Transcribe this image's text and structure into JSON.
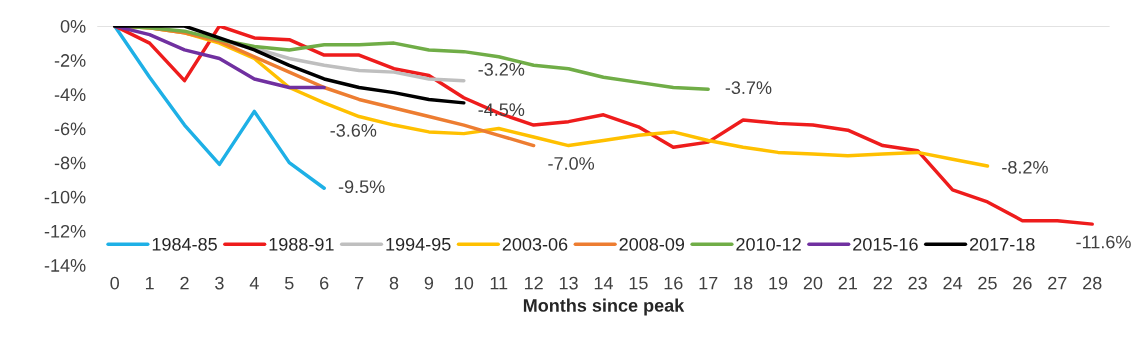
{
  "chart_data": {
    "type": "line",
    "xlabel": "Months since peak",
    "xlim": [
      -0.5,
      28.5
    ],
    "xticks": [
      0,
      1,
      2,
      3,
      4,
      5,
      6,
      7,
      8,
      9,
      10,
      11,
      12,
      13,
      14,
      15,
      16,
      17,
      18,
      19,
      20,
      21,
      22,
      23,
      24,
      25,
      26,
      27,
      28
    ],
    "ylim": [
      -14,
      0
    ],
    "yticks": [
      {
        "value": 0,
        "label": "0%"
      },
      {
        "value": -2,
        "label": "-2%"
      },
      {
        "value": -4,
        "label": "-4%"
      },
      {
        "value": -6,
        "label": "-6%"
      },
      {
        "value": -8,
        "label": "-8%"
      },
      {
        "value": -10,
        "label": "-10%"
      },
      {
        "value": -12,
        "label": "-12%"
      },
      {
        "value": -14,
        "label": "-14%"
      }
    ],
    "grid": false,
    "legend": "bottom left",
    "line_style": "solid",
    "marker": "none",
    "ref_lines": [
      {
        "axis": "y",
        "value": 0,
        "color": "#d9d9d9"
      }
    ],
    "series": [
      {
        "name": "1984-85",
        "color": "#1eb0e6",
        "x": [
          0,
          1,
          2,
          3,
          4,
          5,
          6
        ],
        "values": [
          0,
          -3.0,
          -5.8,
          -8.1,
          -5.0,
          -8.0,
          -9.5
        ]
      },
      {
        "name": "1988-91",
        "color": "#ee1c1c",
        "x": [
          0,
          1,
          2,
          3,
          4,
          5,
          6,
          7,
          8,
          9,
          10,
          11,
          12,
          13,
          14,
          15,
          16,
          17,
          18,
          19,
          20,
          21,
          22,
          23,
          24,
          25,
          26,
          27,
          28
        ],
        "values": [
          0,
          -1.0,
          -3.2,
          0,
          -0.7,
          -0.8,
          -1.7,
          -1.7,
          -2.5,
          -2.9,
          -4.2,
          -5.1,
          -5.8,
          -5.6,
          -5.2,
          -5.9,
          -7.1,
          -6.8,
          -5.5,
          -5.7,
          -5.8,
          -6.1,
          -7.0,
          -7.3,
          -9.6,
          -10.3,
          -11.4,
          -11.4,
          -11.6
        ]
      },
      {
        "name": "1994-95",
        "color": "#bfbfbf",
        "x": [
          0,
          1,
          2,
          3,
          4,
          5,
          6,
          7,
          8,
          9,
          10
        ],
        "values": [
          0,
          -0.1,
          -0.4,
          -0.9,
          -1.3,
          -1.9,
          -2.3,
          -2.6,
          -2.7,
          -3.1,
          -3.2
        ]
      },
      {
        "name": "2003-06",
        "color": "#ffc000",
        "x": [
          0,
          1,
          2,
          3,
          4,
          5,
          6,
          7,
          8,
          9,
          10,
          11,
          12,
          13,
          14,
          15,
          16,
          17,
          18,
          19,
          20,
          21,
          22,
          23,
          24,
          25
        ],
        "values": [
          0,
          -0.1,
          -0.4,
          -1.0,
          -1.9,
          -3.6,
          -4.5,
          -5.3,
          -5.8,
          -6.2,
          -6.3,
          -6.0,
          -6.5,
          -7.0,
          -6.7,
          -6.4,
          -6.2,
          -6.7,
          -7.1,
          -7.4,
          -7.5,
          -7.6,
          -7.5,
          -7.4,
          -7.8,
          -8.2
        ]
      },
      {
        "name": "2008-09",
        "color": "#ed7d31",
        "x": [
          0,
          1,
          2,
          3,
          4,
          5,
          6,
          7,
          8,
          9,
          10,
          11,
          12
        ],
        "values": [
          0,
          -0.1,
          -0.4,
          -0.9,
          -1.8,
          -2.7,
          -3.6,
          -4.3,
          -4.8,
          -5.3,
          -5.8,
          -6.4,
          -7.0
        ]
      },
      {
        "name": "2010-12",
        "color": "#70ad47",
        "x": [
          0,
          1,
          2,
          3,
          4,
          5,
          6,
          7,
          8,
          9,
          10,
          11,
          12,
          13,
          14,
          15,
          16,
          17
        ],
        "values": [
          0,
          -0.1,
          -0.3,
          -0.8,
          -1.2,
          -1.4,
          -1.1,
          -1.1,
          -1.0,
          -1.4,
          -1.5,
          -1.8,
          -2.3,
          -2.5,
          -3.0,
          -3.3,
          -3.6,
          -3.7
        ]
      },
      {
        "name": "2015-16",
        "color": "#7030a0",
        "x": [
          0,
          1,
          2,
          3,
          4,
          5,
          6
        ],
        "values": [
          0,
          -0.5,
          -1.4,
          -1.9,
          -3.1,
          -3.6,
          -3.6
        ]
      },
      {
        "name": "2017-18",
        "color": "#000000",
        "x": [
          0,
          1,
          2,
          3,
          4,
          5,
          6,
          7,
          8,
          9,
          10
        ],
        "values": [
          0,
          0,
          0,
          -0.7,
          -1.4,
          -2.3,
          -3.1,
          -3.6,
          -3.9,
          -4.3,
          -4.5
        ]
      }
    ],
    "annotations": [
      {
        "text": "-9.5%",
        "x": 6,
        "y": -9.5
      },
      {
        "text": "-11.6%",
        "x": 28,
        "y": -11.6
      },
      {
        "text": "-3.2%",
        "x": 10,
        "y": -3.2
      },
      {
        "text": "-8.2%",
        "x": 25,
        "y": -8.2
      },
      {
        "text": "-7.0%",
        "x": 12,
        "y": -7.0
      },
      {
        "text": "-3.7%",
        "x": 17,
        "y": -3.7
      },
      {
        "text": "-3.6%",
        "x": 6,
        "y": -3.6
      },
      {
        "text": "-4.5%",
        "x": 10,
        "y": -4.5
      }
    ]
  }
}
